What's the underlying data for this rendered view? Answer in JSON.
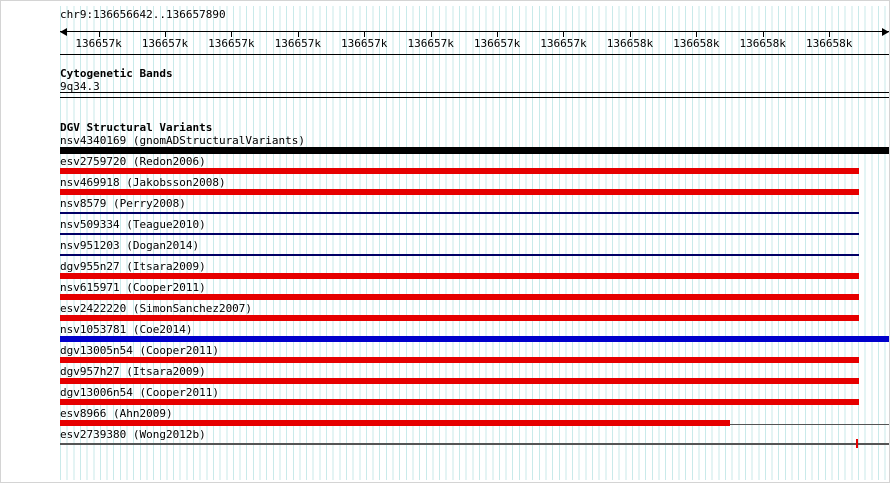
{
  "colors": {
    "grid_line": "#c9eaea",
    "axis_black": "#000000",
    "loss_red": "#e60000",
    "gain_blue": "#0000cc",
    "complex_black": "#000000",
    "thin_navy": "#000066",
    "connector_gray": "#555555",
    "marker_red": "#e60000"
  },
  "header": {
    "region": "chr9:136656642..136657890"
  },
  "ruler": {
    "ticks": [
      {
        "label": "136657k",
        "pct": 4.65
      },
      {
        "label": "136657k",
        "pct": 12.66
      },
      {
        "label": "136657k",
        "pct": 20.67
      },
      {
        "label": "136657k",
        "pct": 28.69
      },
      {
        "label": "136657k",
        "pct": 36.7
      },
      {
        "label": "136657k",
        "pct": 44.71
      },
      {
        "label": "136657k",
        "pct": 52.72
      },
      {
        "label": "136657k",
        "pct": 60.73
      },
      {
        "label": "136658k",
        "pct": 68.75
      },
      {
        "label": "136658k",
        "pct": 76.76
      },
      {
        "label": "136658k",
        "pct": 84.77
      },
      {
        "label": "136658k",
        "pct": 92.78
      }
    ]
  },
  "cytobands": {
    "title": "Cytogenetic Bands",
    "band": "9q34.3"
  },
  "variants": {
    "title": "DGV Structural Variants",
    "tracks": [
      {
        "label": "nsv4340169 (gnomADStructuralVariants)",
        "color": "#000000",
        "style": "thick",
        "height": 7,
        "start_pct": 0,
        "end_pct": 100
      },
      {
        "label": "esv2759720 (Redon2006)",
        "color": "#e60000",
        "style": "thick",
        "start_pct": 0,
        "end_pct": 96.4
      },
      {
        "label": "nsv469918 (Jakobsson2008)",
        "color": "#e60000",
        "style": "thick",
        "start_pct": 0,
        "end_pct": 96.4
      },
      {
        "label": "nsv8579 (Perry2008)",
        "color": "#000066",
        "style": "thin",
        "start_pct": 0,
        "end_pct": 96.4
      },
      {
        "label": "nsv509334 (Teague2010)",
        "color": "#000066",
        "style": "thin",
        "start_pct": 0,
        "end_pct": 96.4
      },
      {
        "label": "nsv951203 (Dogan2014)",
        "color": "#000066",
        "style": "thin",
        "start_pct": 0,
        "end_pct": 96.4
      },
      {
        "label": "dgv955n27 (Itsara2009)",
        "color": "#e60000",
        "style": "thick",
        "start_pct": 0,
        "end_pct": 96.4
      },
      {
        "label": "nsv615971 (Cooper2011)",
        "color": "#e60000",
        "style": "thick",
        "start_pct": 0,
        "end_pct": 96.4
      },
      {
        "label": "esv2422220 (SimonSanchez2007)",
        "color": "#e60000",
        "style": "thick",
        "start_pct": 0,
        "end_pct": 96.4
      },
      {
        "label": "nsv1053781 (Coe2014)",
        "color": "#0000cc",
        "style": "thick",
        "start_pct": 0,
        "end_pct": 100
      },
      {
        "label": "dgv13005n54 (Cooper2011)",
        "color": "#e60000",
        "style": "thick",
        "start_pct": 0,
        "end_pct": 96.4
      },
      {
        "label": "dgv957h27 (Itsara2009)",
        "color": "#e60000",
        "style": "thick",
        "start_pct": 0,
        "end_pct": 96.4
      },
      {
        "label": "dgv13006n54 (Cooper2011)",
        "color": "#e60000",
        "style": "thick",
        "start_pct": 0,
        "end_pct": 96.4
      },
      {
        "label": "esv8966 (Ahn2009)",
        "color": "#e60000",
        "style": "thick",
        "start_pct": 0,
        "end_pct": 80.8,
        "tail": {
          "start_pct": 80.8,
          "end_pct": 100,
          "color": "#555555"
        }
      },
      {
        "label": "esv2739380 (Wong2012b)",
        "color": "#555555",
        "style": "thin",
        "start_pct": 0,
        "end_pct": 100,
        "marker": {
          "pct": 96,
          "color": "#e60000"
        }
      }
    ]
  }
}
